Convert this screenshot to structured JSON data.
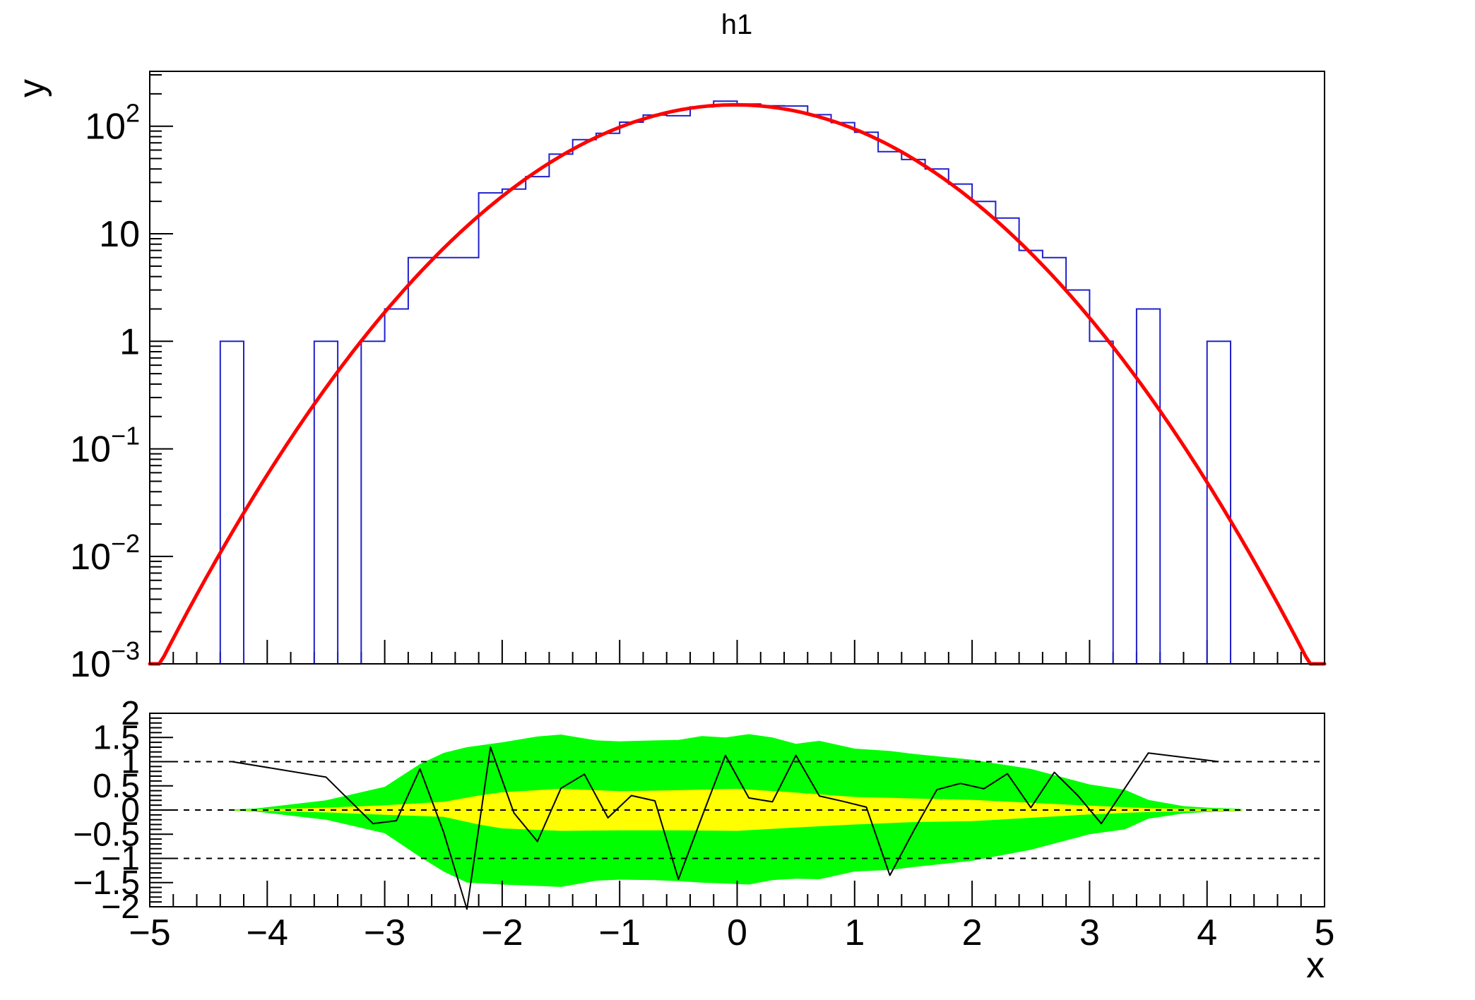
{
  "title": "h1",
  "colors": {
    "background": "#ffffff",
    "frame": "#000000",
    "histogram": "#2020cc",
    "fit": "#ff0000",
    "band_2sigma": "#00ff00",
    "band_1sigma": "#ffff00",
    "pull_line": "#000000"
  },
  "chart_data": [
    {
      "type": "bar",
      "subtype": "histogram-with-gaussian-fit",
      "title": "h1",
      "xlabel": "x",
      "ylabel": "y",
      "xlim": [
        -5,
        5
      ],
      "ylim": [
        0.001,
        324
      ],
      "ylog": true,
      "grid": false,
      "bins": {
        "n": 50,
        "xmin": -5,
        "xmax": 5,
        "contents": [
          0,
          0,
          0,
          1,
          0,
          0,
          0,
          1,
          0,
          1,
          2,
          6,
          6,
          6,
          24,
          26,
          34,
          55,
          75,
          86,
          109,
          127,
          125,
          151,
          171,
          161,
          155,
          154,
          128,
          108,
          88,
          58,
          49,
          40,
          29,
          20,
          14,
          7,
          6,
          3,
          1,
          0,
          2,
          0,
          0,
          1,
          0,
          0,
          0,
          0
        ]
      },
      "fit": {
        "model": "gaussian",
        "amplitude": 158,
        "mean": -0.02,
        "sigma": 1.0
      },
      "y_ticks": [
        {
          "value": 100,
          "mantissa": "10",
          "exponent": "2"
        },
        {
          "value": 10,
          "mantissa": "10",
          "exponent": ""
        },
        {
          "value": 1,
          "mantissa": "1",
          "exponent": ""
        },
        {
          "value": 0.1,
          "mantissa": "10",
          "exponent": "−1"
        },
        {
          "value": 0.01,
          "mantissa": "10",
          "exponent": "−2"
        },
        {
          "value": 0.001,
          "mantissa": "10",
          "exponent": "−3"
        }
      ],
      "x_ticks": [
        {
          "value": -5,
          "label": "−5"
        },
        {
          "value": -4,
          "label": "−4"
        },
        {
          "value": -3,
          "label": "−3"
        },
        {
          "value": -2,
          "label": "−2"
        },
        {
          "value": -1,
          "label": "−1"
        },
        {
          "value": 0,
          "label": "0"
        },
        {
          "value": 1,
          "label": "1"
        },
        {
          "value": 2,
          "label": "2"
        },
        {
          "value": 3,
          "label": "3"
        },
        {
          "value": 4,
          "label": "4"
        },
        {
          "value": 5,
          "label": "5"
        }
      ]
    },
    {
      "type": "line",
      "subtype": "pull-residuals-with-confidence-bands",
      "ylim": [
        -2,
        2
      ],
      "dashed_reference_lines": [
        1,
        0,
        -1
      ],
      "y_ticks": [
        {
          "value": 2,
          "label": "2"
        },
        {
          "value": 1.5,
          "label": "1.5"
        },
        {
          "value": 1,
          "label": "1"
        },
        {
          "value": 0.5,
          "label": "0.5"
        },
        {
          "value": 0,
          "label": "0"
        },
        {
          "value": -0.5,
          "label": "−0.5"
        },
        {
          "value": -1,
          "label": "−1"
        },
        {
          "value": -1.5,
          "label": "−1.5"
        },
        {
          "value": -2,
          "label": "−2"
        }
      ],
      "pulls": [
        [
          -4.3,
          1.0
        ],
        [
          -3.5,
          0.68
        ],
        [
          -3.1,
          -0.28
        ],
        [
          -2.9,
          -0.22
        ],
        [
          -2.7,
          0.85
        ],
        [
          -2.5,
          -0.45
        ],
        [
          -2.3,
          -2.05
        ],
        [
          -2.1,
          1.3
        ],
        [
          -1.9,
          -0.06
        ],
        [
          -1.7,
          -0.65
        ],
        [
          -1.5,
          0.45
        ],
        [
          -1.3,
          0.74
        ],
        [
          -1.1,
          -0.16
        ],
        [
          -0.9,
          0.3
        ],
        [
          -0.7,
          0.19
        ],
        [
          -0.5,
          -1.43
        ],
        [
          -0.3,
          -0.14
        ],
        [
          -0.1,
          1.13
        ],
        [
          0.1,
          0.25
        ],
        [
          0.3,
          0.17
        ],
        [
          0.5,
          1.13
        ],
        [
          0.7,
          0.29
        ],
        [
          0.9,
          0.18
        ],
        [
          1.1,
          0.06
        ],
        [
          1.3,
          -1.35
        ],
        [
          1.5,
          -0.44
        ],
        [
          1.7,
          0.42
        ],
        [
          1.9,
          0.55
        ],
        [
          2.1,
          0.44
        ],
        [
          2.3,
          0.75
        ],
        [
          2.5,
          0.05
        ],
        [
          2.7,
          0.78
        ],
        [
          2.9,
          0.3
        ],
        [
          3.1,
          -0.28
        ],
        [
          3.5,
          1.18
        ],
        [
          4.1,
          1.0
        ]
      ],
      "green_band": {
        "x": [
          -4.3,
          -4.1,
          -3.5,
          -3.0,
          -2.7,
          -2.5,
          -2.3,
          -2.0,
          -1.7,
          -1.5,
          -1.2,
          -1.0,
          -0.7,
          -0.5,
          -0.3,
          -0.1,
          0.1,
          0.3,
          0.5,
          0.7,
          1.0,
          1.3,
          1.5,
          2.0,
          2.5,
          3.0,
          3.3,
          3.5,
          3.8,
          4.0,
          4.3
        ],
        "top": [
          0.01,
          0.03,
          0.2,
          0.48,
          0.95,
          1.18,
          1.3,
          1.4,
          1.52,
          1.56,
          1.44,
          1.42,
          1.44,
          1.45,
          1.53,
          1.5,
          1.57,
          1.5,
          1.37,
          1.43,
          1.27,
          1.22,
          1.16,
          1.04,
          0.85,
          0.53,
          0.42,
          0.21,
          0.08,
          0.05,
          0.02
        ],
        "bottom": [
          -0.01,
          -0.03,
          -0.2,
          -0.48,
          -0.97,
          -1.27,
          -1.5,
          -1.54,
          -1.57,
          -1.59,
          -1.46,
          -1.44,
          -1.45,
          -1.47,
          -1.5,
          -1.52,
          -1.54,
          -1.45,
          -1.42,
          -1.43,
          -1.27,
          -1.24,
          -1.18,
          -1.05,
          -0.82,
          -0.5,
          -0.4,
          -0.18,
          -0.07,
          -0.04,
          -0.02
        ]
      },
      "yellow_band": {
        "x": [
          -4.3,
          -4.1,
          -3.5,
          -3.0,
          -2.5,
          -2.2,
          -2.0,
          -1.5,
          -1.0,
          -0.5,
          0.0,
          0.5,
          1.0,
          1.5,
          2.0,
          2.5,
          3.0,
          3.5,
          4.0,
          4.3
        ],
        "top": [
          0.005,
          0.01,
          0.05,
          0.1,
          0.17,
          0.3,
          0.37,
          0.44,
          0.39,
          0.41,
          0.44,
          0.36,
          0.27,
          0.24,
          0.21,
          0.15,
          0.09,
          0.04,
          0.02,
          0.01
        ],
        "bottom": [
          -0.005,
          -0.01,
          -0.05,
          -0.1,
          -0.14,
          -0.3,
          -0.38,
          -0.43,
          -0.42,
          -0.42,
          -0.43,
          -0.36,
          -0.3,
          -0.25,
          -0.23,
          -0.16,
          -0.09,
          -0.04,
          -0.02,
          -0.01
        ]
      }
    }
  ]
}
